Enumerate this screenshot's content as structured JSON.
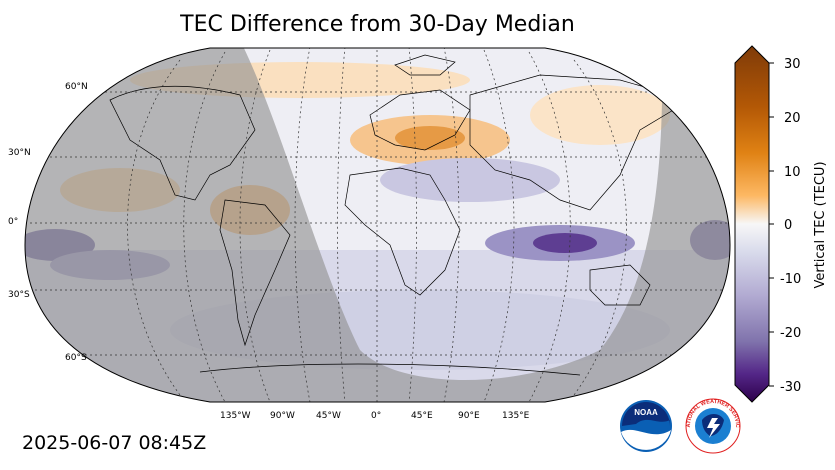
{
  "title": "TEC Difference from 30-Day Median",
  "timestamp": "2025-06-07 08:45Z",
  "map": {
    "projection": "robinson",
    "lat_labels": [
      "60°N",
      "30°N",
      "0°",
      "30°S",
      "60°S"
    ],
    "lon_labels": [
      "135°W",
      "90°W",
      "45°W",
      "0°",
      "45°E",
      "90°E",
      "135°E"
    ],
    "night_side": "shaded gray",
    "highlights": [
      {
        "region": "Mediterranean / Europe",
        "sign": "positive",
        "approx_tecu": 15
      },
      {
        "region": "Northern South America",
        "sign": "positive",
        "approx_tecu": 8
      },
      {
        "region": "Indian Ocean / Indonesia",
        "sign": "negative",
        "approx_tecu": -25
      },
      {
        "region": "Equatorial Pacific (east)",
        "sign": "negative",
        "approx_tecu": -15
      },
      {
        "region": "North Atlantic / Canada",
        "sign": "positive",
        "approx_tecu": 6
      }
    ]
  },
  "colorbar": {
    "label": "Vertical TEC (TECU)",
    "ticks": [
      "30",
      "20",
      "10",
      "0",
      "-10",
      "-20",
      "-30"
    ],
    "min": -30,
    "max": 30,
    "colormap": "PuOr_r",
    "colors": {
      "max": "#7f3b08",
      "high": "#e08214",
      "mid_high": "#fdb863",
      "zero": "#f7f7f7",
      "mid_low": "#b2abd2",
      "low": "#8073ac",
      "min": "#2d004b"
    }
  },
  "logos": {
    "noaa": "NOAA",
    "nws": "NATIONAL WEATHER SERVICE"
  }
}
